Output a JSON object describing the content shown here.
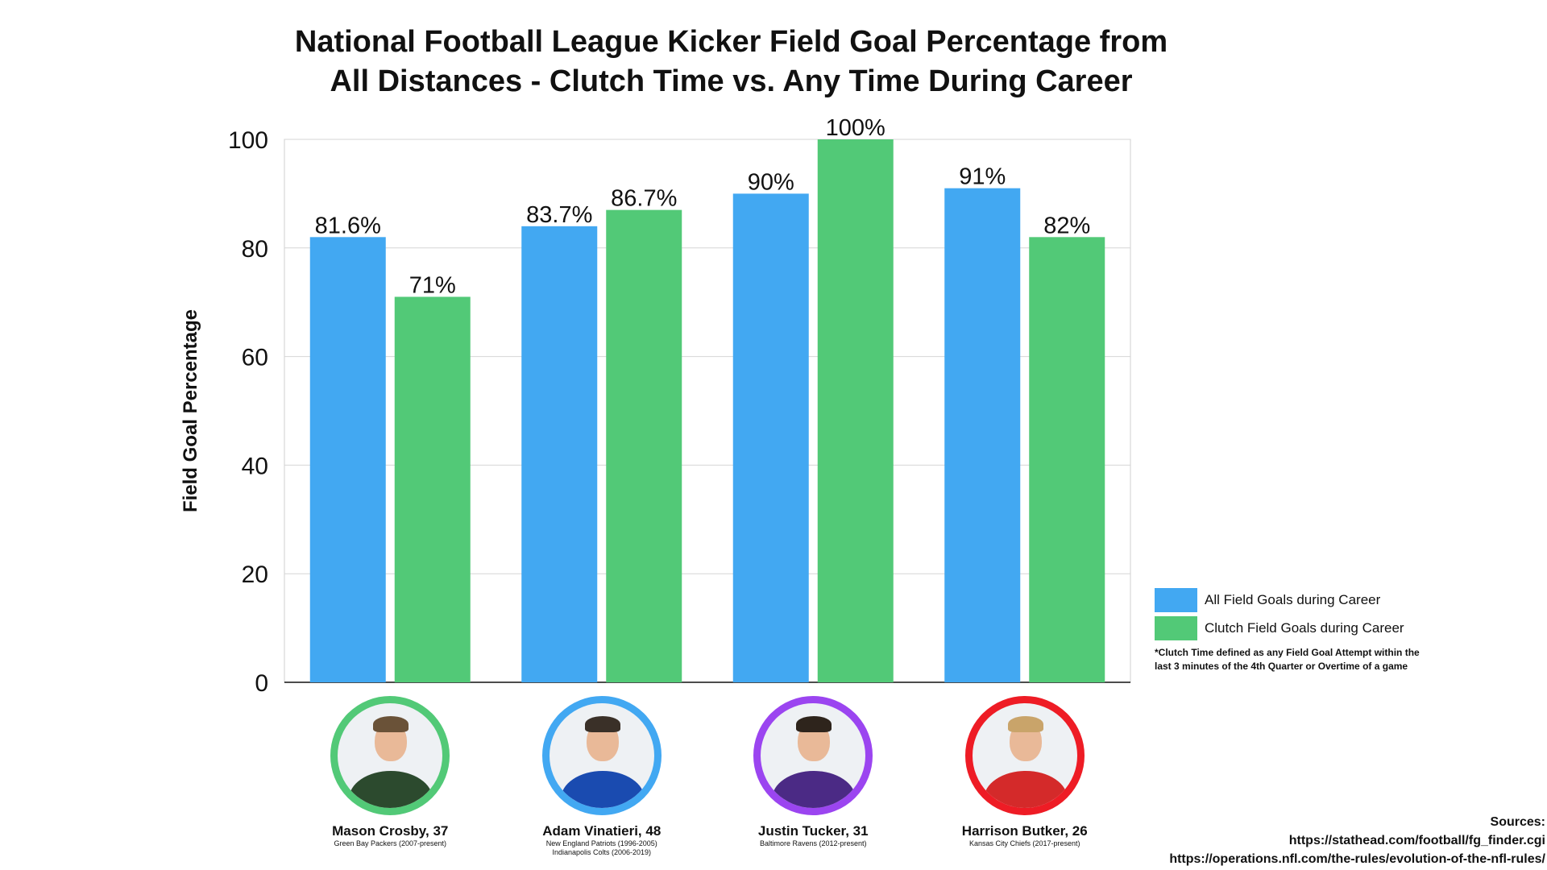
{
  "chart_data": {
    "type": "bar",
    "title": [
      "National Football League Kicker Field Goal Percentage from",
      "All Distances - Clutch Time vs. Any Time During Career"
    ],
    "ylabel": "Field Goal Percentage",
    "ylim": [
      0,
      100
    ],
    "yticks": [
      0,
      20,
      40,
      60,
      80,
      100
    ],
    "grid": true,
    "legend_position": "right",
    "categories": [
      "Mason Crosby, 37",
      "Adam Vinatieri, 48",
      "Justin Tucker, 31",
      "Harrison Butker, 26"
    ],
    "series": [
      {
        "name": "All Field Goals during Career",
        "color": "#42a8f2",
        "values": [
          82,
          84,
          90,
          91
        ],
        "labels": [
          "81.6%",
          "83.7%",
          "90%",
          "91%"
        ]
      },
      {
        "name": "Clutch Field Goals during Career",
        "color": "#52c977",
        "values": [
          71,
          87,
          100,
          82
        ],
        "labels": [
          "71%",
          "86.7%",
          "100%",
          "82%"
        ]
      }
    ]
  },
  "players": [
    {
      "name": "Mason Crosby, 37",
      "teams": [
        "Green Bay Packers (2007-present)"
      ],
      "ring": "#52c977",
      "jersey": "#2c4a2e",
      "hair": "#6a5238"
    },
    {
      "name": "Adam Vinatieri, 48",
      "teams": [
        "New England Patriots (1996-2005)",
        "Indianapolis Colts (2006-2019)"
      ],
      "ring": "#42a8f2",
      "jersey": "#1a4bb0",
      "hair": "#3a3028"
    },
    {
      "name": "Justin Tucker, 31",
      "teams": [
        "Baltimore Ravens (2012-present)"
      ],
      "ring": "#9b45f0",
      "jersey": "#4b2a85",
      "hair": "#2e241c"
    },
    {
      "name": "Harrison Butker, 26",
      "teams": [
        "Kansas City Chiefs (2017-present)"
      ],
      "ring": "#ee1c25",
      "jersey": "#d42a2a",
      "hair": "#c9a46a"
    }
  ],
  "footnote": "*Clutch Time defined as any Field Goal Attempt within the last 3 minutes of the 4th Quarter or Overtime of a game",
  "sources": {
    "heading": "Sources:",
    "links": [
      "https://stathead.com/football/fg_finder.cgi",
      "https://operations.nfl.com/the-rules/evolution-of-the-nfl-rules/"
    ]
  }
}
